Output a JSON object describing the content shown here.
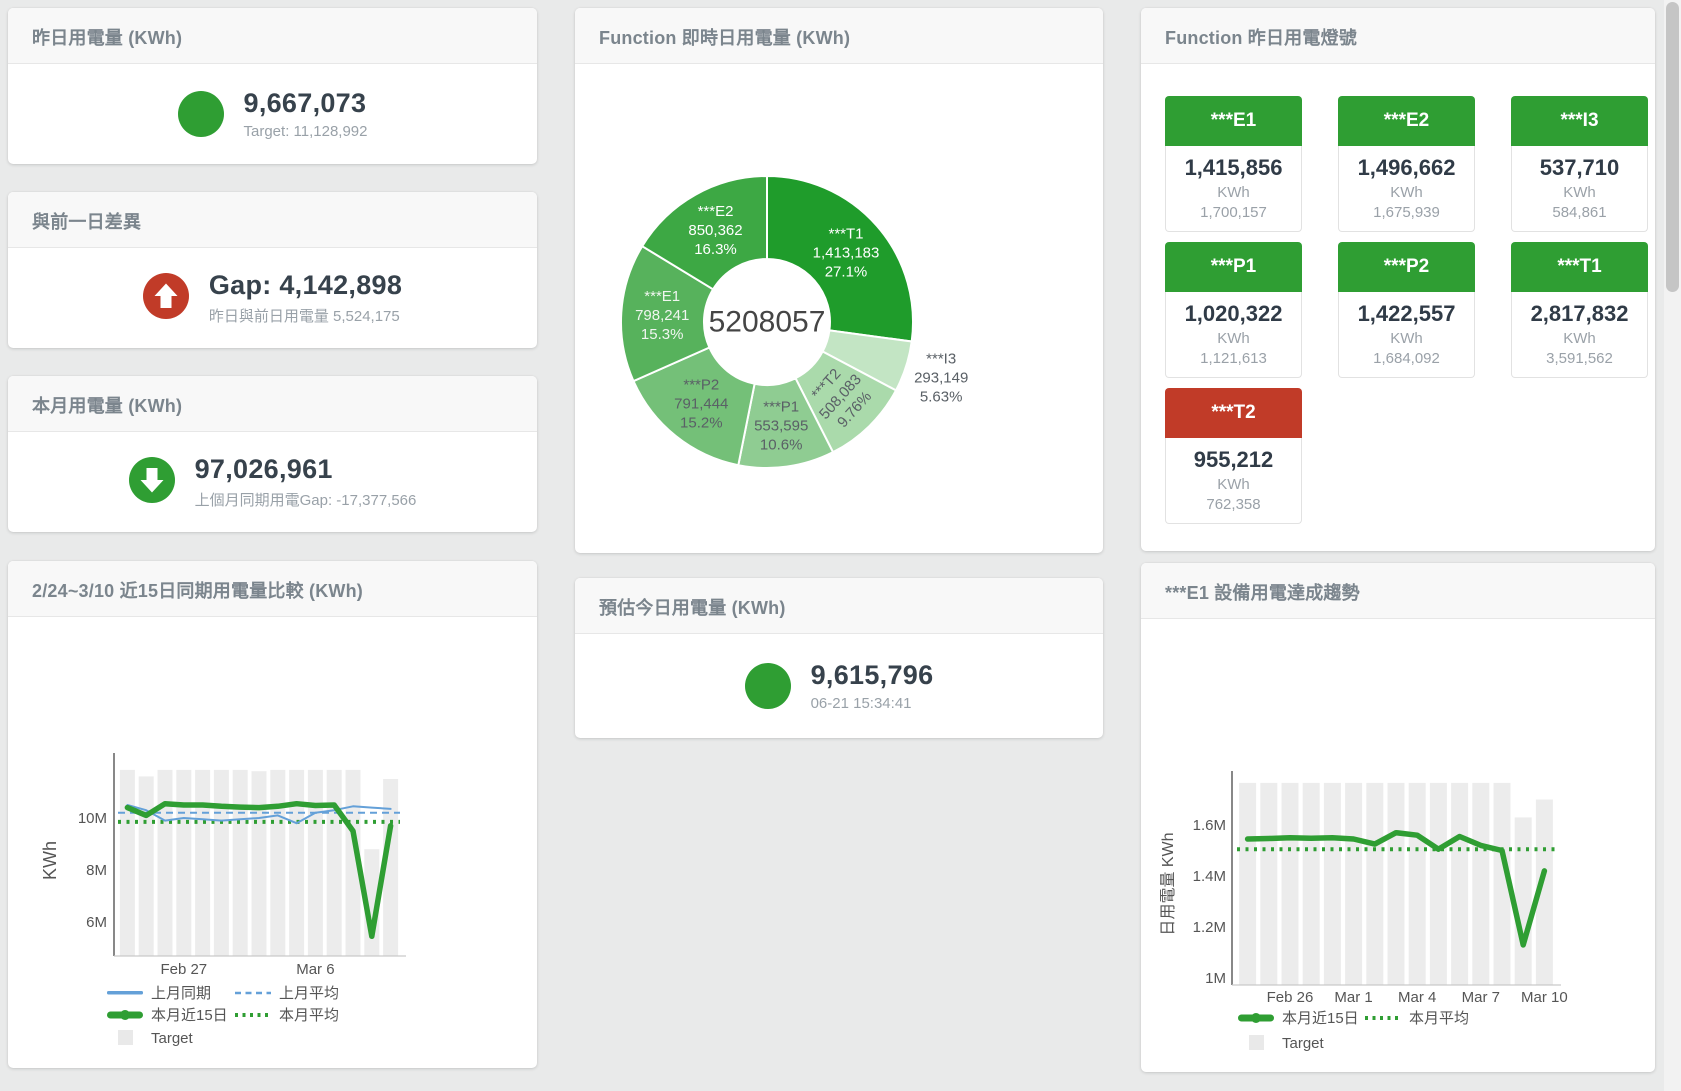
{
  "colors": {
    "green": "#2f9e33",
    "red": "#c13b28",
    "blue": "#64a0d8",
    "target_bar": "#ececec",
    "axis_text": "#555555"
  },
  "cards": {
    "yesterday": {
      "title": "昨日用電量 (KWh)",
      "value": "9,667,073",
      "subtitle": "Target: 11,128,992",
      "icon": "green-circle"
    },
    "day_gap": {
      "title": "與前一日差異",
      "value": "Gap: 4,142,898",
      "subtitle": "昨日與前日用電量 5,524,175",
      "icon": "red-up-arrow"
    },
    "month": {
      "title": "本月用電量 (KWh)",
      "value": "97,026,961",
      "subtitle": "上個月同期用電Gap: -17,377,566",
      "icon": "green-down-arrow"
    },
    "estimate": {
      "title": "預估今日用電量 (KWh)",
      "value": "9,615,796",
      "subtitle": "06-21 15:34:41",
      "icon": "green-circle"
    },
    "lights": {
      "title": "Function 昨日用電燈號",
      "unit": "KWh",
      "tiles": [
        {
          "name": "***E1",
          "value": "1,415,856",
          "target": "1,700,157",
          "status": "green"
        },
        {
          "name": "***E2",
          "value": "1,496,662",
          "target": "1,675,939",
          "status": "green"
        },
        {
          "name": "***I3",
          "value": "537,710",
          "target": "584,861",
          "status": "green"
        },
        {
          "name": "***P1",
          "value": "1,020,322",
          "target": "1,121,613",
          "status": "green"
        },
        {
          "name": "***P2",
          "value": "1,422,557",
          "target": "1,684,092",
          "status": "green"
        },
        {
          "name": "***T1",
          "value": "2,817,832",
          "target": "3,591,562",
          "status": "green"
        },
        {
          "name": "***T2",
          "value": "955,212",
          "target": "762,358",
          "status": "red"
        }
      ]
    }
  },
  "chart_data": [
    {
      "id": "realtime_donut",
      "type": "pie",
      "title": "Function 即時日用電量 (KWh)",
      "center_label": "5208057",
      "slices": [
        {
          "name": "***T1",
          "value": "1,413,183",
          "pct": 27.1,
          "pct_label": "27.1%",
          "color": "#1f9c2b",
          "label_color": "#ffffff"
        },
        {
          "name": "***I3",
          "value": "293,149",
          "pct": 5.63,
          "pct_label": "5.63%",
          "color": "#c3e5c4",
          "label_color": "#5a6066",
          "label_outside": true
        },
        {
          "name": "***T2",
          "value": "508,083",
          "pct": 9.76,
          "pct_label": "9.76%",
          "color": "#aadaab",
          "label_color": "#5a6066",
          "label_rotate": -48
        },
        {
          "name": "***P1",
          "value": "553,595",
          "pct": 10.6,
          "pct_label": "10.6%",
          "color": "#8fcc92",
          "label_color": "#5a6066"
        },
        {
          "name": "***P2",
          "value": "791,444",
          "pct": 15.2,
          "pct_label": "15.2%",
          "color": "#74c078",
          "label_color": "#5a6066"
        },
        {
          "name": "***E1",
          "value": "798,241",
          "pct": 15.3,
          "pct_label": "15.3%",
          "color": "#57b25c",
          "label_color": "#f0f6f0"
        },
        {
          "name": "***E2",
          "value": "850,362",
          "pct": 16.3,
          "pct_label": "16.3%",
          "color": "#3da844",
          "label_color": "#ffffff"
        }
      ]
    },
    {
      "id": "comparison",
      "type": "line",
      "title": "2/24~3/10 近15日同期用電量比較 (KWh)",
      "ylabel": "KWh",
      "unit": "M KWh",
      "n": 15,
      "ylim": [
        4.7,
        12.0
      ],
      "grid": false,
      "legend_position": "bottom-left",
      "yticks": [
        {
          "v": 6,
          "label": "6M"
        },
        {
          "v": 8,
          "label": "8M"
        },
        {
          "v": 10,
          "label": "10M"
        }
      ],
      "xticks": [
        {
          "i": 3,
          "label": "Feb 27"
        },
        {
          "i": 10,
          "label": "Mar 6"
        }
      ],
      "series": [
        {
          "name": "Target",
          "type": "bar",
          "color": "#ececec",
          "values": [
            11.85,
            11.6,
            11.85,
            11.85,
            11.85,
            11.85,
            11.85,
            11.8,
            11.85,
            11.85,
            11.85,
            11.85,
            11.85,
            8.8,
            11.5
          ]
        },
        {
          "name": "上月平均",
          "type": "hline-dashed",
          "color": "#64a0d8",
          "value": 10.2
        },
        {
          "name": "本月平均",
          "type": "hline-dotted",
          "color": "#2f9e33",
          "value": 9.85
        },
        {
          "name": "上月同期",
          "type": "line",
          "width": 2,
          "color": "#64a0d8",
          "values": [
            10.5,
            10.3,
            9.9,
            10.0,
            9.95,
            9.9,
            9.95,
            10.0,
            10.1,
            9.8,
            10.2,
            10.3,
            10.45,
            10.4,
            10.35
          ]
        },
        {
          "name": "本月近15日",
          "type": "line",
          "width": 5.5,
          "color": "#2f9e33",
          "values": [
            10.4,
            10.1,
            10.55,
            10.5,
            10.5,
            10.45,
            10.42,
            10.4,
            10.45,
            10.55,
            10.48,
            10.5,
            9.5,
            5.45,
            9.7
          ]
        }
      ],
      "legend": [
        [
          {
            "swatch": "line",
            "color": "#64a0d8",
            "label": "上月同期"
          },
          {
            "swatch": "dashed",
            "color": "#64a0d8",
            "label": "上月平均"
          }
        ],
        [
          {
            "swatch": "line-thick",
            "color": "#2f9e33",
            "label": "本月近15日"
          },
          {
            "swatch": "dotted",
            "color": "#2f9e33",
            "label": "本月平均"
          }
        ],
        [
          {
            "swatch": "box",
            "color": "#e9e9e9",
            "label": "Target"
          }
        ]
      ]
    },
    {
      "id": "e1_trend",
      "type": "line",
      "title": "***E1 設備用電達成趨勢",
      "ylabel": "日用電量 KWh",
      "unit": "M KWh",
      "n": 15,
      "ylim": [
        0.97,
        1.78
      ],
      "grid": false,
      "legend_position": "bottom-left",
      "yticks": [
        {
          "v": 1.0,
          "label": "1M"
        },
        {
          "v": 1.2,
          "label": "1.2M"
        },
        {
          "v": 1.4,
          "label": "1.4M"
        },
        {
          "v": 1.6,
          "label": "1.6M"
        }
      ],
      "xticks": [
        {
          "i": 2,
          "label": "Feb 26"
        },
        {
          "i": 5,
          "label": "Mar 1"
        },
        {
          "i": 8,
          "label": "Mar 4"
        },
        {
          "i": 11,
          "label": "Mar 7"
        },
        {
          "i": 14,
          "label": "Mar 10"
        }
      ],
      "series": [
        {
          "name": "Target",
          "type": "bar",
          "color": "#ececec",
          "values": [
            1.765,
            1.765,
            1.765,
            1.765,
            1.765,
            1.765,
            1.765,
            1.765,
            1.765,
            1.765,
            1.765,
            1.765,
            1.765,
            1.63,
            1.7
          ]
        },
        {
          "name": "本月平均",
          "type": "hline-dotted",
          "color": "#2f9e33",
          "value": 1.505
        },
        {
          "name": "本月近15日",
          "type": "line",
          "width": 5.5,
          "color": "#2f9e33",
          "values": [
            1.545,
            1.547,
            1.55,
            1.548,
            1.55,
            1.545,
            1.525,
            1.57,
            1.56,
            1.505,
            1.555,
            1.52,
            1.5,
            1.13,
            1.42
          ]
        }
      ],
      "legend": [
        [
          {
            "swatch": "line-thick",
            "color": "#2f9e33",
            "label": "本月近15日"
          },
          {
            "swatch": "dotted",
            "color": "#2f9e33",
            "label": "本月平均"
          }
        ],
        [
          {
            "swatch": "box",
            "color": "#e9e9e9",
            "label": "Target"
          }
        ]
      ]
    }
  ]
}
